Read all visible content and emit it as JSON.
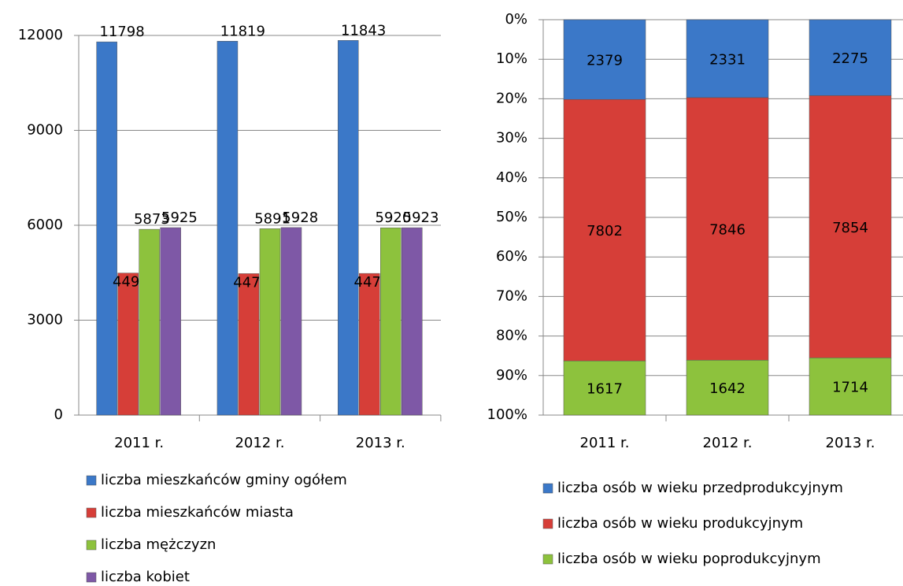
{
  "chart_data": [
    {
      "type": "bar",
      "categories": [
        "2011 r.",
        "2012 r.",
        "2013 r."
      ],
      "series": [
        {
          "name": "liczba mieszkańców gminy ogółem",
          "color": "#3b78c8",
          "values": [
            11798,
            11819,
            11843
          ]
        },
        {
          "name": "liczba mieszkańców miasta",
          "color": "#d63e38",
          "values": [
            4490,
            4471,
            4478
          ]
        },
        {
          "name": "liczba mężczyzn",
          "color": "#8dc23d",
          "values": [
            5873,
            5891,
            5920
          ]
        },
        {
          "name": "liczba kobiet",
          "color": "#7e58a6",
          "values": [
            5925,
            5928,
            5923
          ]
        }
      ],
      "ylim": [
        0,
        12000
      ],
      "yticks": [
        0,
        3000,
        6000,
        9000,
        12000
      ],
      "grid": true,
      "legend": "bottom"
    },
    {
      "type": "stacked_percent_bar",
      "categories": [
        "2011 r.",
        "2012 r.",
        "2013 r."
      ],
      "series": [
        {
          "name": "liczba osób w wieku przedprodukcyjnym",
          "color": "#3b78c8",
          "values": [
            2379,
            2331,
            2275
          ]
        },
        {
          "name": "liczba osób w wieku produkcyjnym",
          "color": "#d63e38",
          "values": [
            7802,
            7846,
            7854
          ]
        },
        {
          "name": "liczba osób w wieku poprodukcyjnym",
          "color": "#8dc23d",
          "values": [
            1617,
            1642,
            1714
          ]
        }
      ],
      "ylim": [
        0,
        100
      ],
      "y_inverted": true,
      "yticks": [
        {
          "value": 0,
          "label": "0%"
        },
        {
          "value": 10,
          "label": "10%"
        },
        {
          "value": 20,
          "label": "20%"
        },
        {
          "value": 30,
          "label": "30%"
        },
        {
          "value": 40,
          "label": "40%"
        },
        {
          "value": 50,
          "label": "50%"
        },
        {
          "value": 60,
          "label": "60%"
        },
        {
          "value": 70,
          "label": "70%"
        },
        {
          "value": 80,
          "label": "80%"
        },
        {
          "value": 90,
          "label": "90%"
        },
        {
          "value": 100,
          "label": "100%"
        }
      ],
      "grid": true,
      "legend": "bottom"
    }
  ]
}
